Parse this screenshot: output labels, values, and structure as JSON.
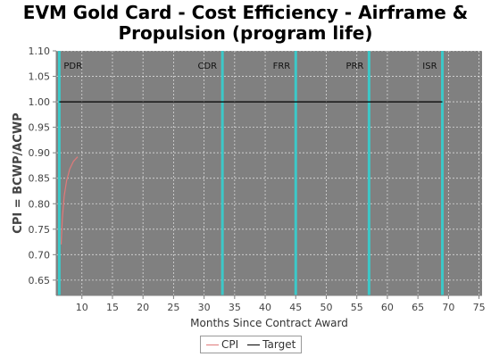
{
  "chart_data": {
    "type": "line",
    "title_lines": [
      "EVM Gold Card - Cost Efficiency - Airframe &",
      "Propulsion (program life)"
    ],
    "xlabel": "Months Since Contract Award",
    "ylabel": "CPI = BCWP/ACWP",
    "xlim": [
      5.8,
      75.5
    ],
    "ylim": [
      0.62,
      1.1
    ],
    "x_ticks": [
      10,
      15,
      20,
      25,
      30,
      35,
      40,
      45,
      50,
      55,
      60,
      65,
      70,
      75
    ],
    "y_ticks": [
      0.65,
      0.7,
      0.75,
      0.8,
      0.85,
      0.9,
      0.95,
      1.0,
      1.05,
      1.1
    ],
    "y_tick_labels": [
      "0.65",
      "0.70",
      "0.75",
      "0.80",
      "0.85",
      "0.90",
      "0.95",
      "1.00",
      "1.05",
      "1.10"
    ],
    "grid": true,
    "background": "#808080",
    "milestones": [
      {
        "label": "PDR",
        "x": 6.3
      },
      {
        "label": "CDR",
        "x": 33
      },
      {
        "label": "FRR",
        "x": 45
      },
      {
        "label": "PRR",
        "x": 57
      },
      {
        "label": "ISR",
        "x": 69
      }
    ],
    "milestone_color": "#3cc8c8",
    "series": [
      {
        "name": "CPI",
        "color": "#e07a7a",
        "x": [
          6.6,
          6.8,
          7.1,
          7.5,
          8.0,
          8.6,
          9.3
        ],
        "y": [
          0.72,
          0.77,
          0.815,
          0.845,
          0.868,
          0.883,
          0.892
        ]
      },
      {
        "name": "Target",
        "color": "#000000",
        "x": [
          6.3,
          69
        ],
        "y": [
          1.0,
          1.0
        ]
      }
    ],
    "legend_position": "bottom-center"
  }
}
